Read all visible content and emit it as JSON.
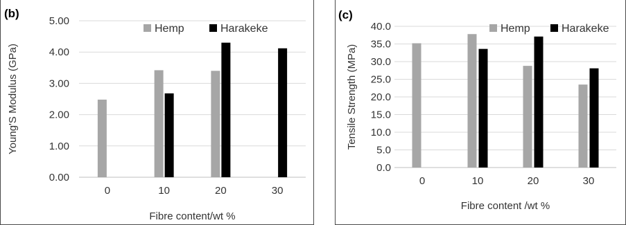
{
  "chart_data": [
    {
      "type": "bar",
      "panel_label": "(b)",
      "categories": [
        "0",
        "10",
        "20",
        "30"
      ],
      "series": [
        {
          "name": "Hemp",
          "values": [
            2.48,
            3.42,
            3.4,
            null
          ]
        },
        {
          "name": "Harakeke",
          "values": [
            null,
            2.68,
            4.3,
            4.12
          ]
        }
      ],
      "xlabel": "Fibre content/wt %",
      "ylabel": "Young'S Modulus (GPa)",
      "ylim": [
        0,
        5
      ],
      "yticks": [
        "0.00",
        "1.00",
        "2.00",
        "3.00",
        "4.00",
        "5.00"
      ],
      "grid": true,
      "legend_position": "top-right",
      "colors": {
        "Hemp": "#a6a6a6",
        "Harakeke": "#000000"
      }
    },
    {
      "type": "bar",
      "panel_label": "(c)",
      "categories": [
        "0",
        "10",
        "20",
        "30"
      ],
      "series": [
        {
          "name": "Hemp",
          "values": [
            35.2,
            37.8,
            28.8,
            23.5
          ]
        },
        {
          "name": "Harakeke",
          "values": [
            null,
            33.6,
            37.1,
            28.1
          ]
        }
      ],
      "xlabel": "Fibre content /wt %",
      "ylabel": "Tensile Strength (MPa)",
      "ylim": [
        0,
        40
      ],
      "yticks": [
        "0.0",
        "5.0",
        "10.0",
        "15.0",
        "20.0",
        "25.0",
        "30.0",
        "35.0",
        "40.0"
      ],
      "grid": true,
      "legend_position": "top-right",
      "colors": {
        "Hemp": "#a6a6a6",
        "Harakeke": "#000000"
      }
    }
  ]
}
